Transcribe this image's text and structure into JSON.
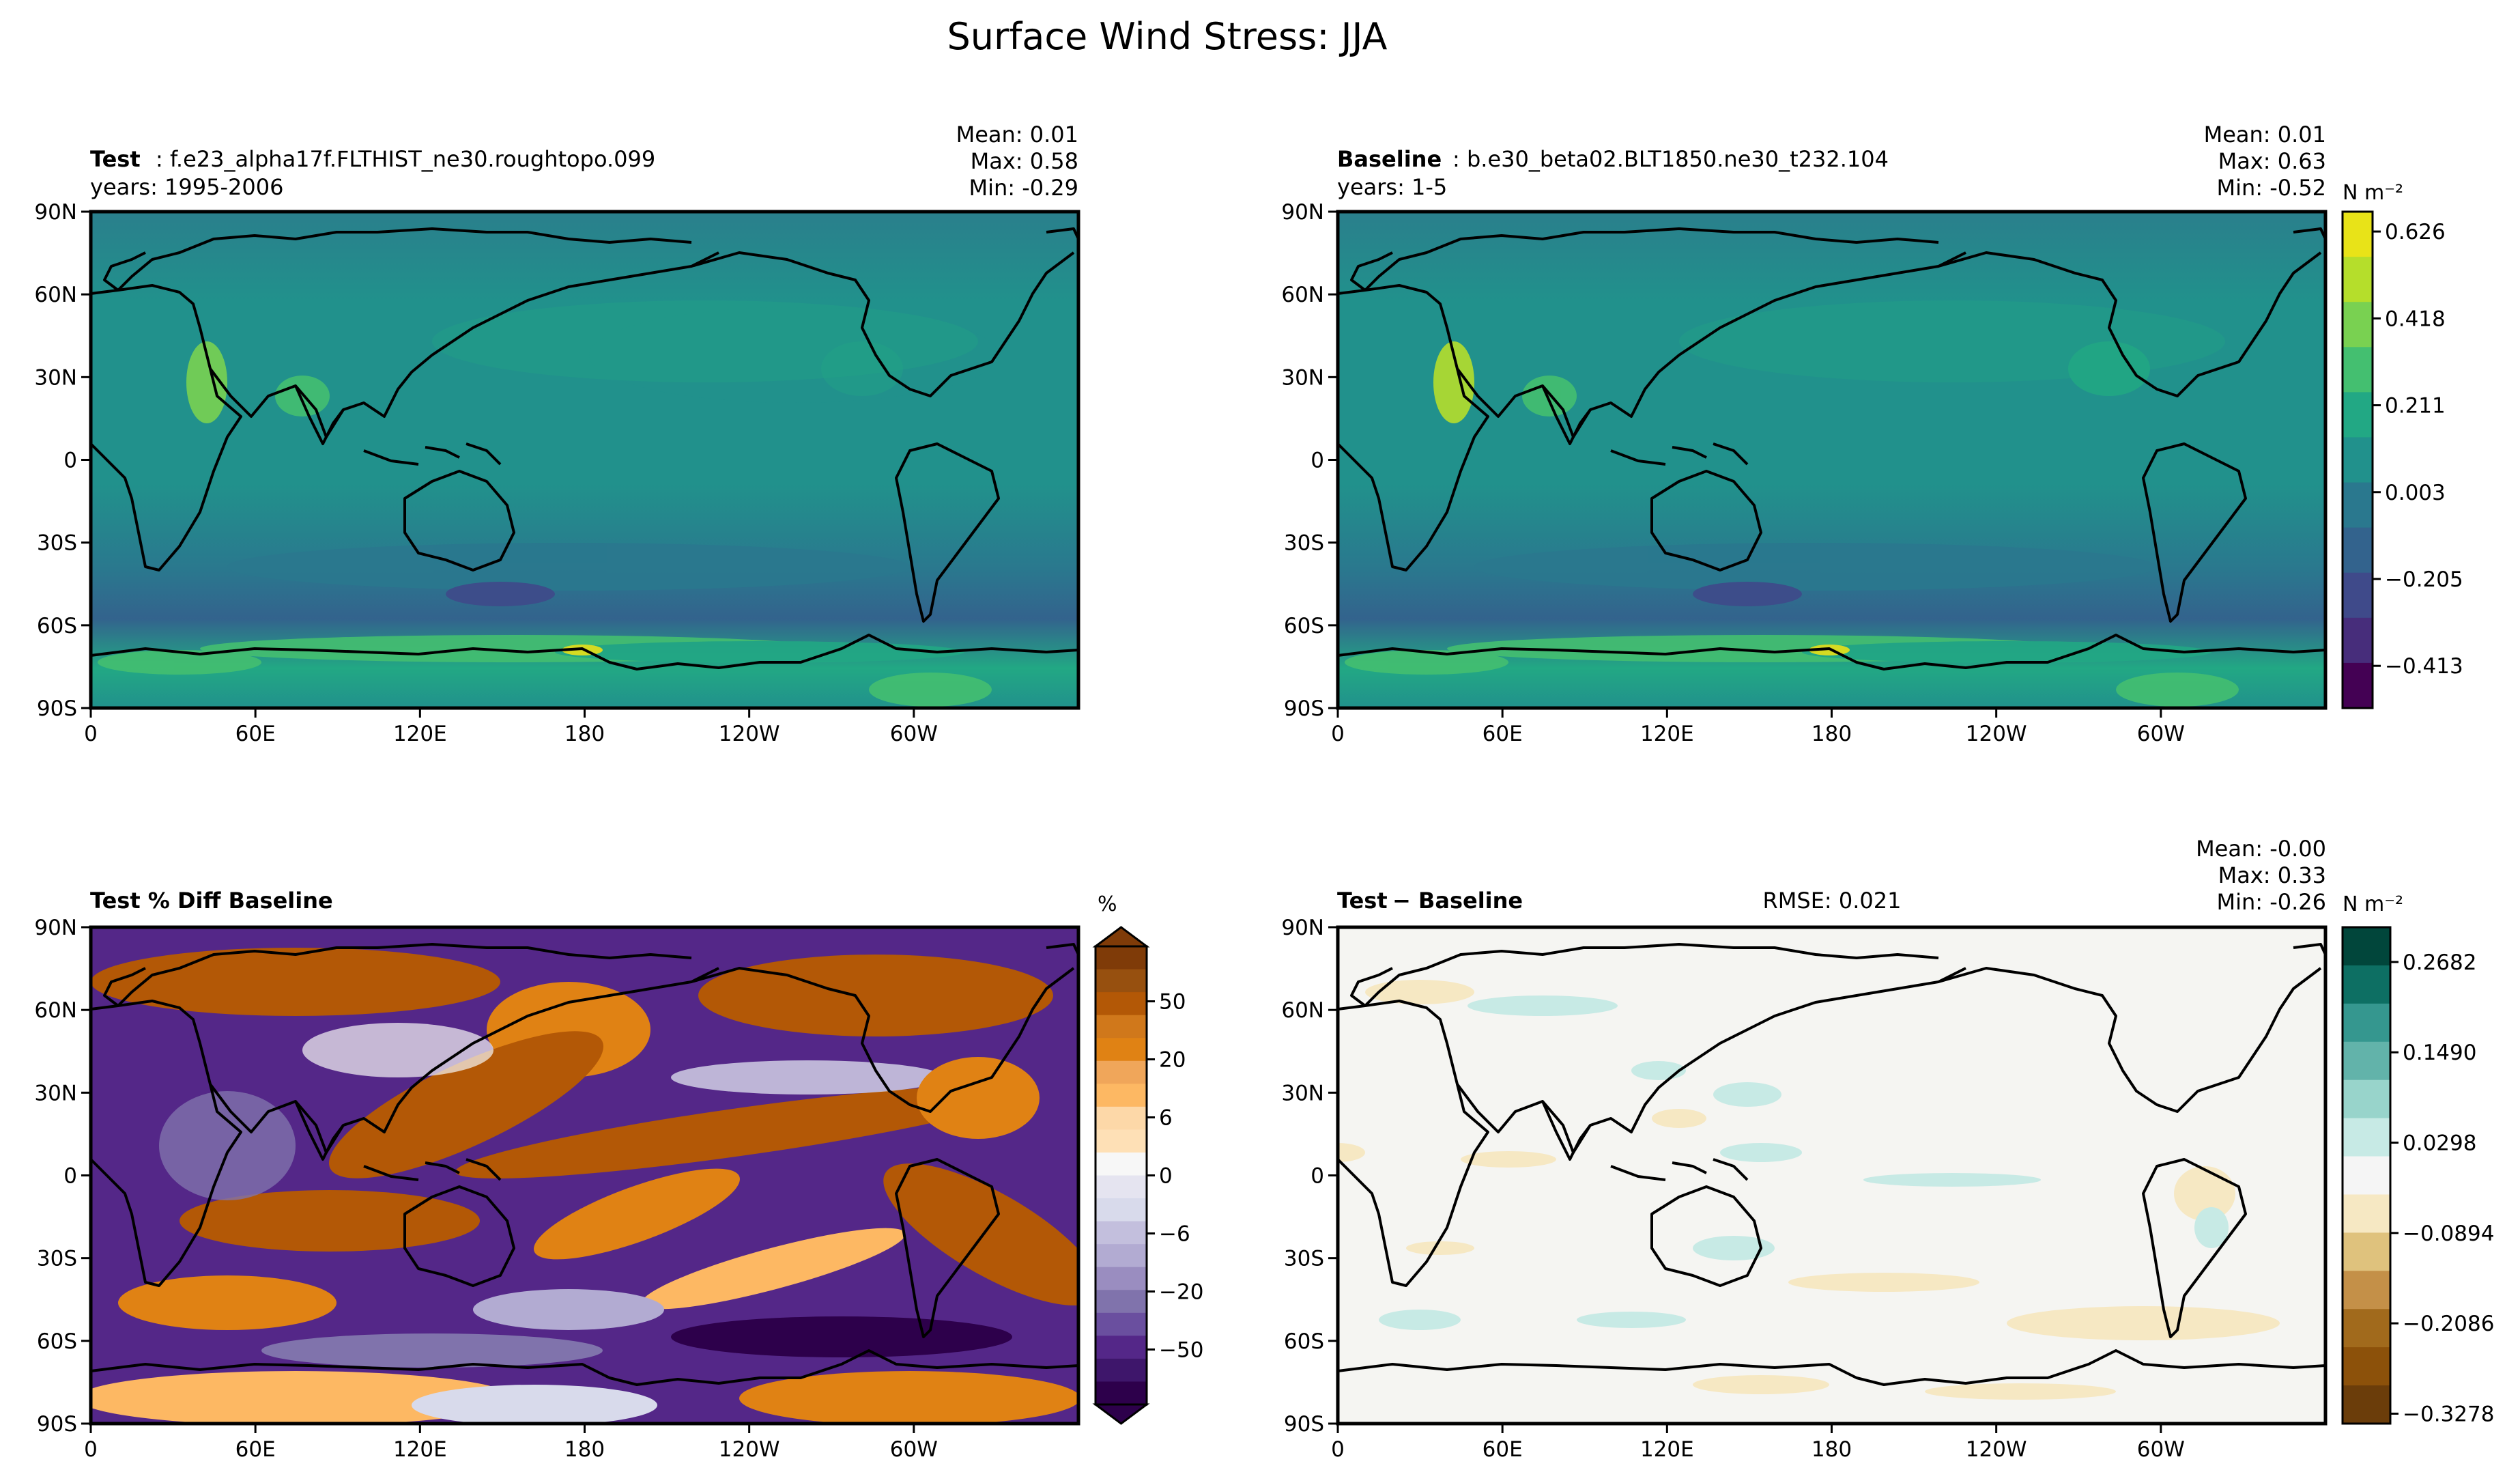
{
  "suptitle": "Surface Wind Stress: JJA",
  "chart_data": [
    {
      "type": "heatmap",
      "panel": "test",
      "label_bold": "Test",
      "label_rest": ": f.e23_alpha17f.FLTHIST_ne30.roughtopo.099",
      "years": "years: 1995-2006",
      "stats": [
        "Mean:  0.01",
        "Max:  0.58",
        "Min: -0.29"
      ],
      "xlabels": [
        "0",
        "60E",
        "120E",
        "180",
        "120W",
        "60W"
      ],
      "ylabels": [
        "90N",
        "60N",
        "30N",
        "0",
        "30S",
        "60S",
        "90S"
      ],
      "xlim": [
        0,
        360
      ],
      "ylim": [
        -90,
        90
      ]
    },
    {
      "type": "heatmap",
      "panel": "baseline",
      "label_bold": "Baseline",
      "label_rest": ": b.e30_beta02.BLT1850.ne30_t232.104",
      "years": "years: 1-5",
      "stats": [
        "Mean:  0.01",
        "Max:  0.63",
        "Min: -0.52"
      ],
      "xlabels": [
        "0",
        "60E",
        "120E",
        "180",
        "120W",
        "60W"
      ],
      "ylabels": [
        "90N",
        "60N",
        "30N",
        "0",
        "30S",
        "60S",
        "90S"
      ],
      "colorbar": {
        "unit": "N m⁻²",
        "ticks": [
          "0.626",
          "0.418",
          "0.211",
          "0.003",
          "−0.205",
          "−0.413"
        ],
        "colors": [
          "#e8e318",
          "#b5de2b",
          "#79d151",
          "#44bf70",
          "#22a884",
          "#21918c",
          "#2a788e",
          "#33638d",
          "#3f4a8a",
          "#472d7b",
          "#440154"
        ]
      }
    },
    {
      "type": "heatmap",
      "panel": "pct-diff",
      "label_bold": "Test % Diff Baseline",
      "xlabels": [
        "0",
        "60E",
        "120E",
        "180",
        "120W",
        "60W"
      ],
      "ylabels": [
        "90N",
        "60N",
        "30N",
        "0",
        "30S",
        "60S",
        "90S"
      ],
      "colorbar": {
        "unit": "%",
        "ticks": [
          "50",
          "20",
          "6",
          "0",
          "−6",
          "−20",
          "−50"
        ],
        "colors": [
          "#7f3b08",
          "#97500f",
          "#b35806",
          "#d0781b",
          "#e08214",
          "#f0a65a",
          "#fdb863",
          "#fdd8a8",
          "#fee0b6",
          "#f7f7f7",
          "#e5e4f0",
          "#d8daeb",
          "#c3bfdd",
          "#b2abd2",
          "#9a8dc0",
          "#8073ac",
          "#6a4f9f",
          "#542788",
          "#3e166b",
          "#2d004b"
        ]
      }
    },
    {
      "type": "heatmap",
      "panel": "diff",
      "label_bold": "Test",
      "label_rest": " − Baseline",
      "rmse": "RMSE: 0.021",
      "stats": [
        "Mean: -0.00",
        "Max:  0.33",
        "Min: -0.26"
      ],
      "xlabels": [
        "0",
        "60E",
        "120E",
        "180",
        "120W",
        "60W"
      ],
      "ylabels": [
        "90N",
        "60N",
        "30N",
        "0",
        "30S",
        "60S",
        "90S"
      ],
      "colorbar": {
        "unit": "N m⁻²",
        "ticks": [
          "0.2682",
          "0.1490",
          "0.0298",
          "−0.0894",
          "−0.2086",
          "−0.3278"
        ],
        "colors": [
          "#01463b",
          "#0d6f63",
          "#35978f",
          "#62b3aa",
          "#98d4cb",
          "#c7eae5",
          "#f5f5f5",
          "#f6e8c3",
          "#dfc27d",
          "#c49048",
          "#a16a1c",
          "#8c510a",
          "#6b3d0a"
        ]
      }
    }
  ]
}
